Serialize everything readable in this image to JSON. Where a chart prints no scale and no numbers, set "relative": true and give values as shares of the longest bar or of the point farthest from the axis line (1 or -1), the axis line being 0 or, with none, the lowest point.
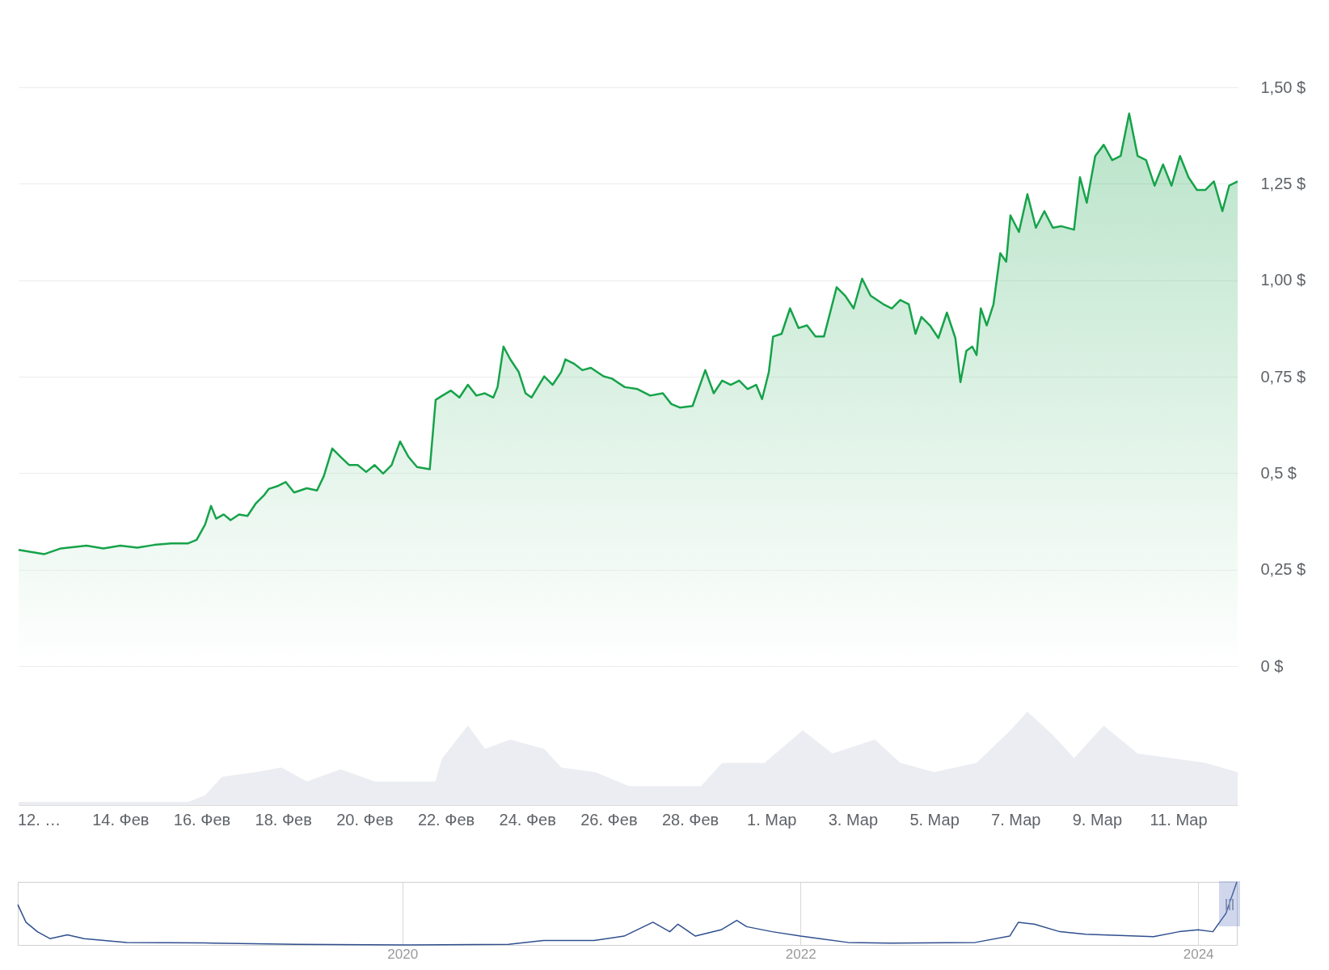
{
  "chart_data": [
    {
      "type": "area",
      "x": [
        "2024-02-11T12:00",
        "2024-02-12T03:00",
        "2024-02-12T13:00",
        "2024-02-13T04:00",
        "2024-02-13T14:00",
        "2024-02-14T00:00",
        "2024-02-14T10:00",
        "2024-02-14T20:00",
        "2024-02-15T06:00",
        "2024-02-15T16:00",
        "2024-02-15T21:00",
        "2024-02-16T02:00",
        "2024-02-16T05:30",
        "2024-02-16T08:30",
        "2024-02-16T13:00",
        "2024-02-16T17:00",
        "2024-02-16T22:00",
        "2024-02-17T03:00",
        "2024-02-17T08:00",
        "2024-02-17T13:00",
        "2024-02-17T15:30",
        "2024-02-17T20:30",
        "2024-02-18T01:30",
        "2024-02-18T06:30",
        "2024-02-18T14:00",
        "2024-02-18T20:00",
        "2024-02-19T00:00",
        "2024-02-19T05:00",
        "2024-02-19T10:00",
        "2024-02-19T15:00",
        "2024-02-19T20:00",
        "2024-02-20T01:00",
        "2024-02-20T06:00",
        "2024-02-20T11:00",
        "2024-02-20T16:00",
        "2024-02-20T21:00",
        "2024-02-21T02:00",
        "2024-02-21T07:00",
        "2024-02-21T14:30",
        "2024-02-21T18:00",
        "2024-02-21T22:00",
        "2024-02-22T03:00",
        "2024-02-22T08:00",
        "2024-02-22T13:00",
        "2024-02-22T18:00",
        "2024-02-22T23:00",
        "2024-02-23T04:00",
        "2024-02-23T06:30",
        "2024-02-23T10:00",
        "2024-02-23T14:00",
        "2024-02-23T19:00",
        "2024-02-23T23:00",
        "2024-02-24T02:30",
        "2024-02-24T05:00",
        "2024-02-24T10:00",
        "2024-02-24T15:00",
        "2024-02-24T20:00",
        "2024-02-24T22:30",
        "2024-02-25T03:30",
        "2024-02-25T08:30",
        "2024-02-25T13:30",
        "2024-02-25T21:00",
        "2024-02-26T02:00",
        "2024-02-26T09:30",
        "2024-02-26T17:00",
        "2024-02-27T00:30",
        "2024-02-27T08:00",
        "2024-02-27T13:00",
        "2024-02-27T18:00",
        "2024-02-28T01:30",
        "2024-02-28T09:00",
        "2024-02-28T14:00",
        "2024-02-28T19:00",
        "2024-02-29T00:00",
        "2024-02-29T05:00",
        "2024-02-29T10:00",
        "2024-02-29T15:00",
        "2024-02-29T18:30",
        "2024-02-29T22:30",
        "2024-03-01T01:00",
        "2024-03-01T06:00",
        "2024-03-01T11:00",
        "2024-03-01T16:00",
        "2024-03-01T21:00",
        "2024-03-02T02:00",
        "2024-03-02T07:00",
        "2024-03-02T14:30",
        "2024-03-02T19:30",
        "2024-03-03T00:30",
        "2024-03-03T05:30",
        "2024-03-03T10:30",
        "2024-03-03T18:00",
        "2024-03-03T23:00",
        "2024-03-04T04:00",
        "2024-03-04T09:00",
        "2024-03-04T13:00",
        "2024-03-04T16:30",
        "2024-03-04T21:30",
        "2024-03-05T02:30",
        "2024-03-05T07:30",
        "2024-03-05T10:00",
        "2024-03-05T12:30",
        "2024-03-05T15:30",
        "2024-03-05T19:00",
        "2024-03-05T22:30",
        "2024-03-06T01:00",
        "2024-03-06T03:30",
        "2024-03-06T07:00",
        "2024-03-06T11:00",
        "2024-03-06T15:00",
        "2024-03-06T18:30",
        "2024-03-06T21:00",
        "2024-03-07T02:00",
        "2024-03-07T07:00",
        "2024-03-07T12:00",
        "2024-03-07T17:00",
        "2024-03-07T22:00",
        "2024-03-08T03:00",
        "2024-03-08T10:30",
        "2024-03-08T14:00",
        "2024-03-08T18:00",
        "2024-03-08T23:00",
        "2024-03-09T04:00",
        "2024-03-09T09:00",
        "2024-03-09T14:00",
        "2024-03-09T19:00",
        "2024-03-10T00:00",
        "2024-03-10T05:00",
        "2024-03-10T10:00",
        "2024-03-10T15:00",
        "2024-03-10T20:00",
        "2024-03-11T01:00",
        "2024-03-11T06:00",
        "2024-03-11T11:00",
        "2024-03-11T16:00",
        "2024-03-11T21:00",
        "2024-03-12T02:00",
        "2024-03-12T06:00",
        "2024-03-12T11:00"
      ],
      "series": [
        {
          "color": "#16a34a",
          "values": [
            0.301,
            0.29,
            0.305,
            0.312,
            0.305,
            0.312,
            0.307,
            0.314,
            0.318,
            0.318,
            0.327,
            0.367,
            0.415,
            0.382,
            0.393,
            0.378,
            0.393,
            0.389,
            0.422,
            0.444,
            0.459,
            0.466,
            0.477,
            0.45,
            0.461,
            0.455,
            0.492,
            0.564,
            0.542,
            0.521,
            0.521,
            0.503,
            0.521,
            0.499,
            0.521,
            0.582,
            0.542,
            0.516,
            0.51,
            0.69,
            0.701,
            0.714,
            0.696,
            0.729,
            0.701,
            0.707,
            0.696,
            0.723,
            0.828,
            0.795,
            0.762,
            0.707,
            0.696,
            0.714,
            0.751,
            0.729,
            0.762,
            0.795,
            0.784,
            0.767,
            0.773,
            0.751,
            0.745,
            0.723,
            0.718,
            0.701,
            0.707,
            0.679,
            0.67,
            0.674,
            0.767,
            0.707,
            0.74,
            0.729,
            0.74,
            0.718,
            0.729,
            0.692,
            0.762,
            0.854,
            0.861,
            0.927,
            0.876,
            0.883,
            0.854,
            0.854,
            0.982,
            0.96,
            0.927,
            1.004,
            0.96,
            0.938,
            0.927,
            0.949,
            0.938,
            0.861,
            0.905,
            0.883,
            0.85,
            0.916,
            0.883,
            0.85,
            0.736,
            0.817,
            0.828,
            0.806,
            0.927,
            0.883,
            0.938,
            1.07,
            1.048,
            1.168,
            1.125,
            1.223,
            1.136,
            1.179,
            1.136,
            1.14,
            1.131,
            1.267,
            1.201,
            1.322,
            1.351,
            1.311,
            1.322,
            1.432,
            1.322,
            1.311,
            1.245,
            1.3,
            1.245,
            1.322,
            1.267,
            1.234,
            1.234,
            1.256,
            1.179,
            1.245,
            1.256
          ]
        }
      ],
      "xlim": [
        "2024-02-11T12:00",
        "2024-03-12T11:00"
      ],
      "ylim": [
        0,
        1.5
      ],
      "yticks": [
        {
          "value": 0,
          "label": "0 $"
        },
        {
          "value": 0.25,
          "label": "0,25 $"
        },
        {
          "value": 0.5,
          "label": "0,5 $"
        },
        {
          "value": 0.75,
          "label": "0,75 $"
        },
        {
          "value": 1,
          "label": "1,00 $"
        },
        {
          "value": 1.25,
          "label": "1,25 $"
        },
        {
          "value": 1.5,
          "label": "1,50 $"
        }
      ],
      "grid": "y",
      "tick_labels": "y"
    },
    {
      "type": "area",
      "relative": true,
      "x": [
        "2024-02-11T12:00",
        "2024-02-15T16:00",
        "2024-02-16T02:00",
        "2024-02-16T12:00",
        "2024-02-17T08:00",
        "2024-02-17T23:00",
        "2024-02-18T14:00",
        "2024-02-19T10:00",
        "2024-02-20T06:00",
        "2024-02-21T02:00",
        "2024-02-21T18:00",
        "2024-02-21T22:00",
        "2024-02-22T13:00",
        "2024-02-22T23:00",
        "2024-02-23T14:00",
        "2024-02-24T10:00",
        "2024-02-24T20:00",
        "2024-02-25T16:00",
        "2024-02-26T12:00",
        "2024-02-27T08:00",
        "2024-02-28T06:30",
        "2024-02-28T19:00",
        "2024-02-29T20:00",
        "2024-03-01T18:30",
        "2024-03-02T12:00",
        "2024-03-03T13:00",
        "2024-03-04T04:00",
        "2024-03-05T00:00",
        "2024-03-06T01:00",
        "2024-03-06T21:00",
        "2024-03-07T07:00",
        "2024-03-07T22:00",
        "2024-03-08T10:30",
        "2024-03-09T04:00",
        "2024-03-10T00:00",
        "2024-03-10T20:00",
        "2024-03-11T16:00",
        "2024-03-12T11:00"
      ],
      "series": [
        {
          "color": "#ecedf2",
          "values": [
            0.03,
            0.03,
            0.1,
            0.3,
            0.35,
            0.4,
            0.25,
            0.38,
            0.25,
            0.25,
            0.25,
            0.5,
            0.85,
            0.6,
            0.7,
            0.6,
            0.4,
            0.35,
            0.2,
            0.2,
            0.2,
            0.45,
            0.45,
            0.8,
            0.55,
            0.7,
            0.45,
            0.35,
            0.45,
            0.8,
            1,
            0.75,
            0.5,
            0.85,
            0.55,
            0.5,
            0.45,
            0.35
          ]
        }
      ],
      "xlim": [
        "2024-02-11T12:00",
        "2024-03-12T11:00"
      ],
      "xticks": [
        {
          "value": "2024-02-12",
          "label": "12. …"
        },
        {
          "value": "2024-02-14",
          "label": "14. Фев"
        },
        {
          "value": "2024-02-16",
          "label": "16. Фев"
        },
        {
          "value": "2024-02-18",
          "label": "18. Фев"
        },
        {
          "value": "2024-02-20",
          "label": "20. Фев"
        },
        {
          "value": "2024-02-22",
          "label": "22. Фев"
        },
        {
          "value": "2024-02-24",
          "label": "24. Фев"
        },
        {
          "value": "2024-02-26",
          "label": "26. Фев"
        },
        {
          "value": "2024-02-28",
          "label": "28. Фев"
        },
        {
          "value": "2024-03-01",
          "label": "1. Мар"
        },
        {
          "value": "2024-03-03",
          "label": "3. Мар"
        },
        {
          "value": "2024-03-05",
          "label": "5. Мар"
        },
        {
          "value": "2024-03-07",
          "label": "7. Мар"
        },
        {
          "value": "2024-03-09",
          "label": "9. Мар"
        },
        {
          "value": "2024-03-11",
          "label": "11. Мар"
        }
      ],
      "tick_labels": "x"
    },
    {
      "type": "line",
      "relative": true,
      "x": [
        "2018-01-25",
        "2018-02-09",
        "2018-03-02",
        "2018-03-25",
        "2018-04-26",
        "2018-05-27",
        "2018-08-13",
        "2019-01-17",
        "2019-06-20",
        "2020-01-01",
        "2020-07-14",
        "2020-09-16",
        "2020-12-18",
        "2021-02-11",
        "2021-04-05",
        "2021-05-06",
        "2021-05-21",
        "2021-06-22",
        "2021-08-08",
        "2021-09-06",
        "2021-09-24",
        "2021-11-10",
        "2022-01-01",
        "2022-03-29",
        "2022-06-15",
        "2022-11-18",
        "2023-01-20",
        "2023-02-05",
        "2023-03-06",
        "2023-04-22",
        "2023-06-08",
        "2023-07-09",
        "2023-10-11",
        "2023-11-27",
        "2024-01-01",
        "2024-01-28",
        "2024-02-21",
        "2024-03-12"
      ],
      "series": [
        {
          "color": "#2f4f8f",
          "values": [
            0.64,
            0.36,
            0.21,
            0.1,
            0.16,
            0.1,
            0.04,
            0.03,
            0.01,
            0,
            0.01,
            0.07,
            0.07,
            0.14,
            0.36,
            0.21,
            0.33,
            0.14,
            0.24,
            0.39,
            0.29,
            0.21,
            0.14,
            0.04,
            0.03,
            0.04,
            0.14,
            0.36,
            0.33,
            0.21,
            0.17,
            0.16,
            0.13,
            0.21,
            0.24,
            0.21,
            0.5,
            1
          ]
        }
      ],
      "xlim": [
        "2018-01-25",
        "2024-03-12"
      ],
      "xticks": [
        {
          "value": "2020-01-01",
          "label": "2020"
        },
        {
          "value": "2022-01-01",
          "label": "2022"
        },
        {
          "value": "2024-01-01",
          "label": "2024"
        }
      ],
      "grid": "x",
      "tick_labels": "x"
    }
  ]
}
